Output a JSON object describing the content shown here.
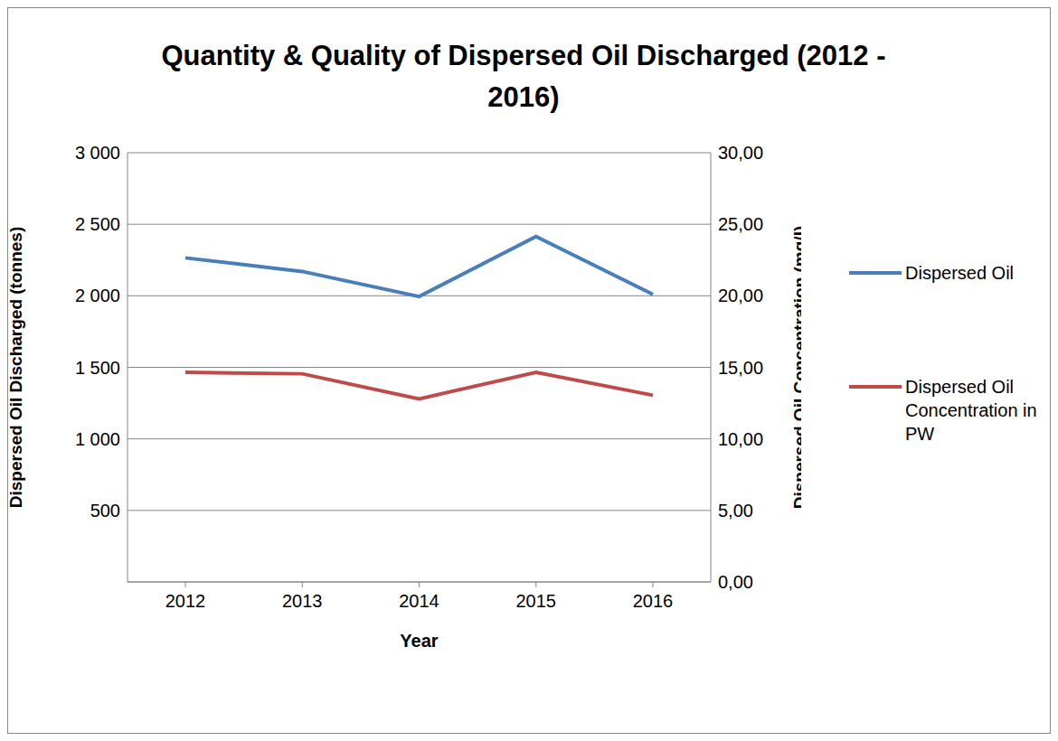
{
  "chart_data": {
    "type": "line",
    "title": "Quantity & Quality of Dispersed Oil Discharged (2012 - 2016)",
    "x_label": "Year",
    "y_label": "Dispersed Oil Discharged (tonnes)",
    "y2_label": "Dispersed Oil Concentration (mg/l)",
    "categories": [
      "2012",
      "2013",
      "2014",
      "2015",
      "2016"
    ],
    "series": [
      {
        "name": "Dispersed Oil",
        "color": "#4a7ebb",
        "axis": "y",
        "marker": "none",
        "values": [
          2265,
          2170,
          1995,
          2415,
          2010
        ]
      },
      {
        "name": "Dispersed Oil Concentration in PW",
        "color": "#be4b48",
        "axis": "y2",
        "marker": "none",
        "values": [
          14.65,
          14.55,
          12.8,
          14.65,
          13.05
        ]
      }
    ],
    "ylim": [
      0,
      3000
    ],
    "yticks": [
      500,
      {
        "value": 1000,
        "label": "1 000"
      },
      {
        "value": 1500,
        "label": "1 500"
      },
      {
        "value": 2000,
        "label": "2 000"
      },
      {
        "value": 2500,
        "label": "2 500"
      },
      {
        "value": 3000,
        "label": "3 000"
      }
    ],
    "y2lim": [
      0,
      30
    ],
    "y2ticks": [
      {
        "value": 0,
        "label": "0,00"
      },
      {
        "value": 5,
        "label": "5,00"
      },
      {
        "value": 10,
        "label": "10,00"
      },
      {
        "value": 15,
        "label": "15,00"
      },
      {
        "value": 20,
        "label": "20,00"
      },
      {
        "value": 25,
        "label": "25,00"
      },
      {
        "value": 30,
        "label": "30,00"
      }
    ],
    "grid": true,
    "legend": "right"
  }
}
